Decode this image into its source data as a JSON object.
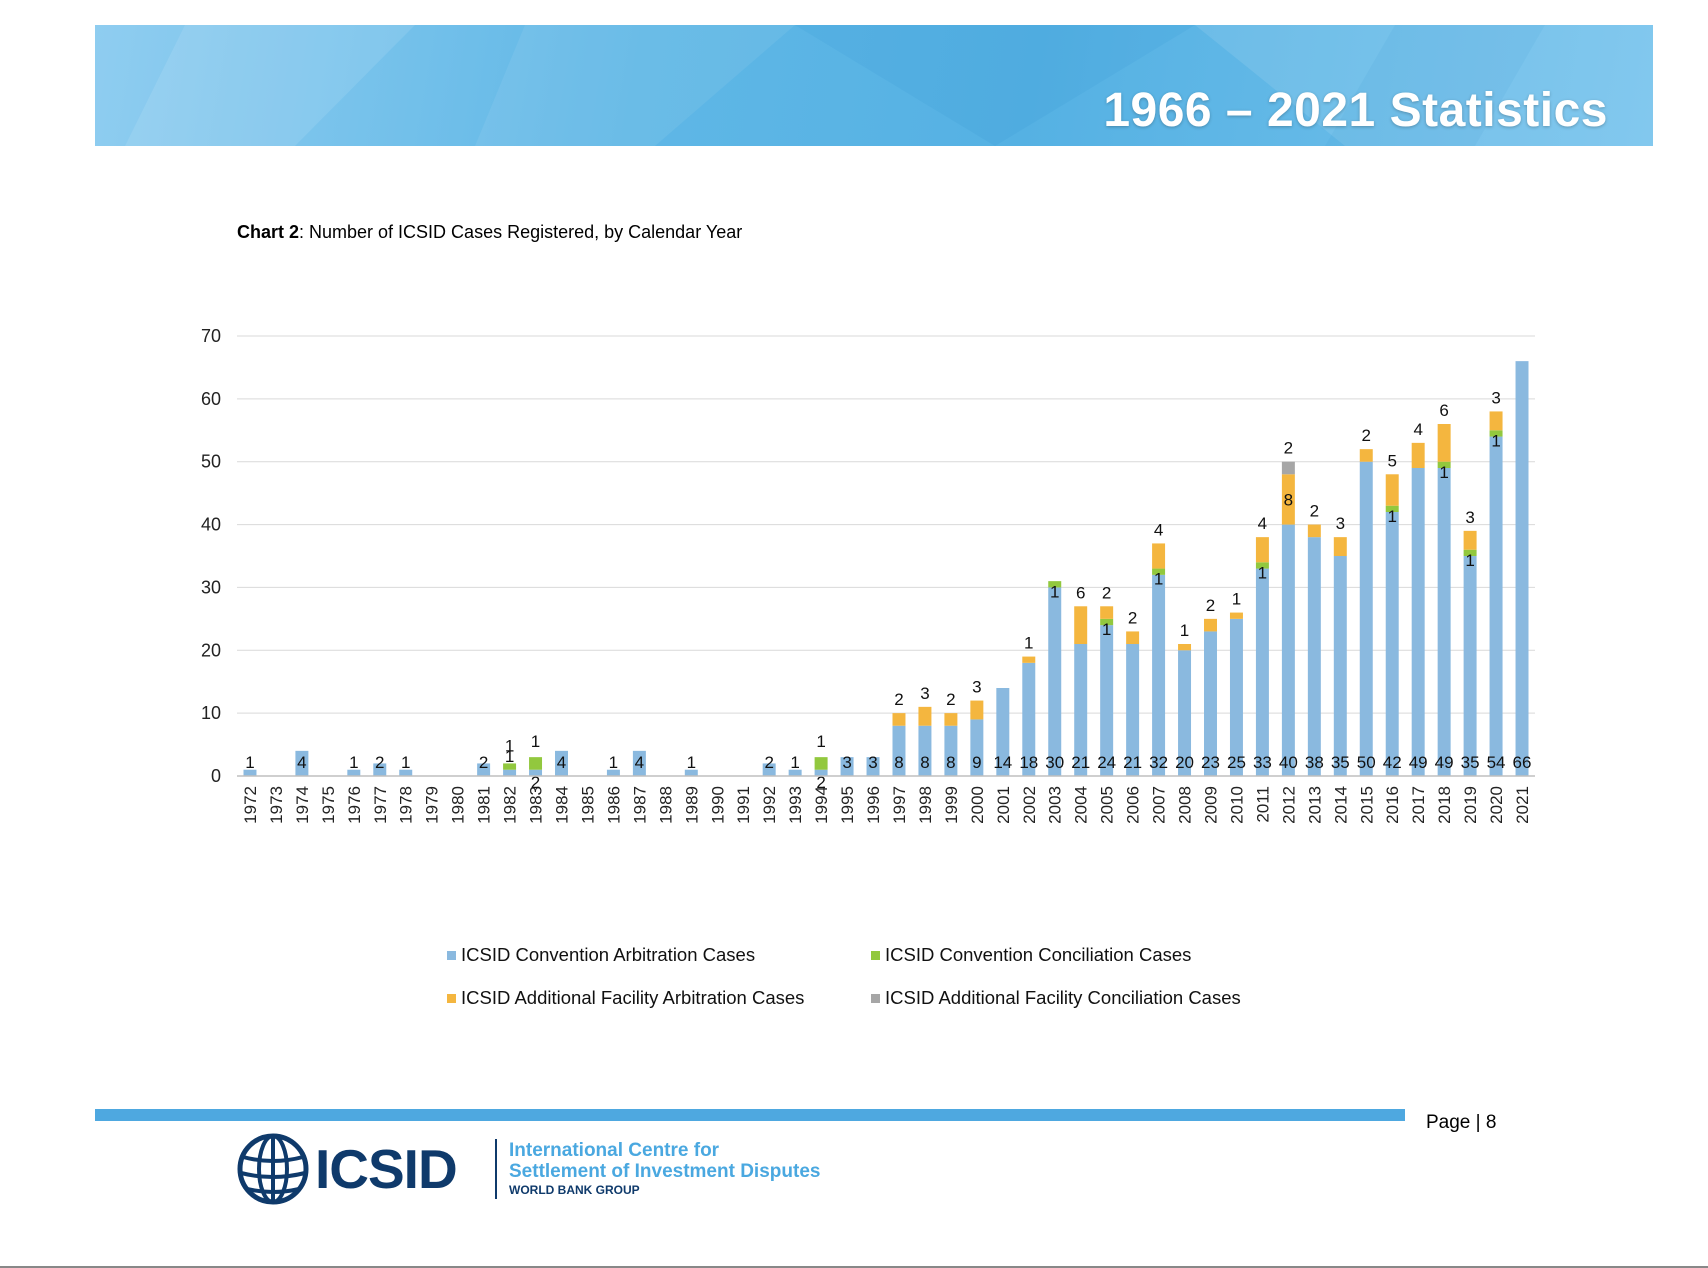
{
  "banner": {
    "title": "1966 – 2021 Statistics"
  },
  "chart_title": {
    "bold": "Chart 2",
    "rest": ": Number of ICSID Cases Registered, by Calendar Year"
  },
  "colors": {
    "arbitration": "#8ab9df",
    "conciliation": "#92c83e",
    "af_arbitration": "#f4b63f",
    "af_conciliation": "#a6a6a6",
    "banner": "#5fb7e6",
    "footer_bar": "#4ea8e0"
  },
  "chart_data": {
    "type": "bar",
    "stacked": true,
    "ylim": [
      0,
      70
    ],
    "yticks": [
      0,
      10,
      20,
      30,
      40,
      50,
      60,
      70
    ],
    "grid": true,
    "legend": "bottom",
    "categories": [
      "1972",
      "1973",
      "1974",
      "1975",
      "1976",
      "1977",
      "1978",
      "1979",
      "1980",
      "1981",
      "1982",
      "1983",
      "1984",
      "1985",
      "1986",
      "1987",
      "1988",
      "1989",
      "1990",
      "1991",
      "1992",
      "1993",
      "1994",
      "1995",
      "1996",
      "1997",
      "1998",
      "1999",
      "2000",
      "2001",
      "2002",
      "2003",
      "2004",
      "2005",
      "2006",
      "2007",
      "2008",
      "2009",
      "2010",
      "2011",
      "2012",
      "2013",
      "2014",
      "2015",
      "2016",
      "2017",
      "2018",
      "2019",
      "2020",
      "2021"
    ],
    "series": [
      {
        "name": "ICSID Convention Arbitration Cases",
        "values": [
          1,
          0,
          4,
          0,
          1,
          2,
          1,
          0,
          0,
          2,
          1,
          1,
          4,
          0,
          1,
          4,
          0,
          1,
          0,
          0,
          2,
          1,
          1,
          3,
          3,
          8,
          8,
          8,
          9,
          14,
          18,
          30,
          21,
          24,
          21,
          32,
          20,
          23,
          25,
          33,
          40,
          38,
          35,
          50,
          42,
          49,
          49,
          35,
          54,
          66
        ],
        "labels": [
          "1",
          "",
          "4",
          "",
          "1",
          "2",
          "1",
          "",
          "",
          "2",
          "",
          "",
          "4",
          "",
          "1",
          "4",
          "",
          "1",
          "",
          "",
          "2",
          "1",
          "",
          "3",
          "3",
          "8",
          "8",
          "8",
          "9",
          "14",
          "18",
          "30",
          "21",
          "24",
          "21",
          "32",
          "20",
          "23",
          "25",
          "33",
          "40",
          "38",
          "35",
          "50",
          "42",
          "49",
          "49",
          "35",
          "54",
          "66"
        ]
      },
      {
        "name": "ICSID Convention Conciliation Cases",
        "values": [
          0,
          0,
          0,
          0,
          0,
          0,
          0,
          0,
          0,
          0,
          1,
          2,
          0,
          0,
          0,
          0,
          0,
          0,
          0,
          0,
          0,
          0,
          2,
          0,
          0,
          0,
          0,
          0,
          0,
          0,
          0,
          1,
          0,
          1,
          0,
          1,
          0,
          0,
          0,
          1,
          0,
          0,
          0,
          0,
          1,
          0,
          1,
          1,
          1,
          0
        ],
        "labels": [
          "",
          "",
          "",
          "",
          "",
          "",
          "",
          "",
          "",
          "",
          "1",
          "2",
          "",
          "",
          "",
          "",
          "",
          "",
          "",
          "",
          "",
          "",
          "2",
          "",
          "",
          "",
          "",
          "",
          "",
          "",
          "",
          "1",
          "",
          "1",
          "",
          "1",
          "",
          "",
          "",
          "1",
          "",
          "",
          "",
          "",
          "1",
          "",
          "1",
          "1",
          "1",
          ""
        ]
      },
      {
        "name": "ICSID Additional Facility Arbitration Cases",
        "values": [
          0,
          0,
          0,
          0,
          0,
          0,
          0,
          0,
          0,
          0,
          0,
          0,
          0,
          0,
          0,
          0,
          0,
          0,
          0,
          0,
          0,
          0,
          0,
          0,
          0,
          2,
          3,
          2,
          3,
          0,
          1,
          0,
          6,
          2,
          2,
          4,
          1,
          2,
          1,
          4,
          8,
          2,
          3,
          2,
          5,
          4,
          6,
          3,
          3,
          0
        ],
        "labels": [
          "",
          "",
          "",
          "",
          "",
          "",
          "",
          "",
          "",
          "",
          "",
          "",
          "",
          "",
          "",
          "",
          "",
          "",
          "",
          "",
          "",
          "",
          "",
          "",
          "",
          "2",
          "3",
          "2",
          "3",
          "",
          "1",
          "",
          "6",
          "2",
          "2",
          "4",
          "1",
          "2",
          "1",
          "4",
          "8",
          "2",
          "3",
          "2",
          "5",
          "4",
          "6",
          "3",
          "3",
          ""
        ]
      },
      {
        "name": "ICSID Additional Facility Conciliation Cases",
        "values": [
          0,
          0,
          0,
          0,
          0,
          0,
          0,
          0,
          0,
          0,
          0,
          0,
          0,
          0,
          0,
          0,
          0,
          0,
          0,
          0,
          0,
          0,
          0,
          0,
          0,
          0,
          0,
          0,
          0,
          0,
          0,
          0,
          0,
          0,
          0,
          0,
          0,
          0,
          0,
          0,
          2,
          0,
          0,
          0,
          0,
          0,
          0,
          0,
          0,
          0
        ],
        "labels": [
          "",
          "",
          "",
          "",
          "",
          "",
          "",
          "",
          "",
          "",
          "",
          "",
          "",
          "",
          "",
          "",
          "",
          "",
          "",
          "",
          "",
          "",
          "",
          "",
          "",
          "",
          "",
          "",
          "",
          "",
          "",
          "",
          "",
          "",
          "",
          "",
          "",
          "",
          "",
          "",
          "2",
          "",
          "",
          "",
          "",
          "",
          "",
          "",
          "",
          ""
        ]
      }
    ]
  },
  "legend_items": [
    {
      "label": "ICSID Convention Arbitration Cases"
    },
    {
      "label": "ICSID Convention Conciliation Cases"
    },
    {
      "label": "ICSID Additional Facility Arbitration Cases"
    },
    {
      "label": "ICSID Additional Facility Conciliation Cases"
    }
  ],
  "footer": {
    "page": "Page | 8",
    "logo_text": "ICSID",
    "logo_line1": "International Centre for",
    "logo_line2": "Settlement of Investment Disputes",
    "logo_line3": "WORLD BANK GROUP"
  }
}
